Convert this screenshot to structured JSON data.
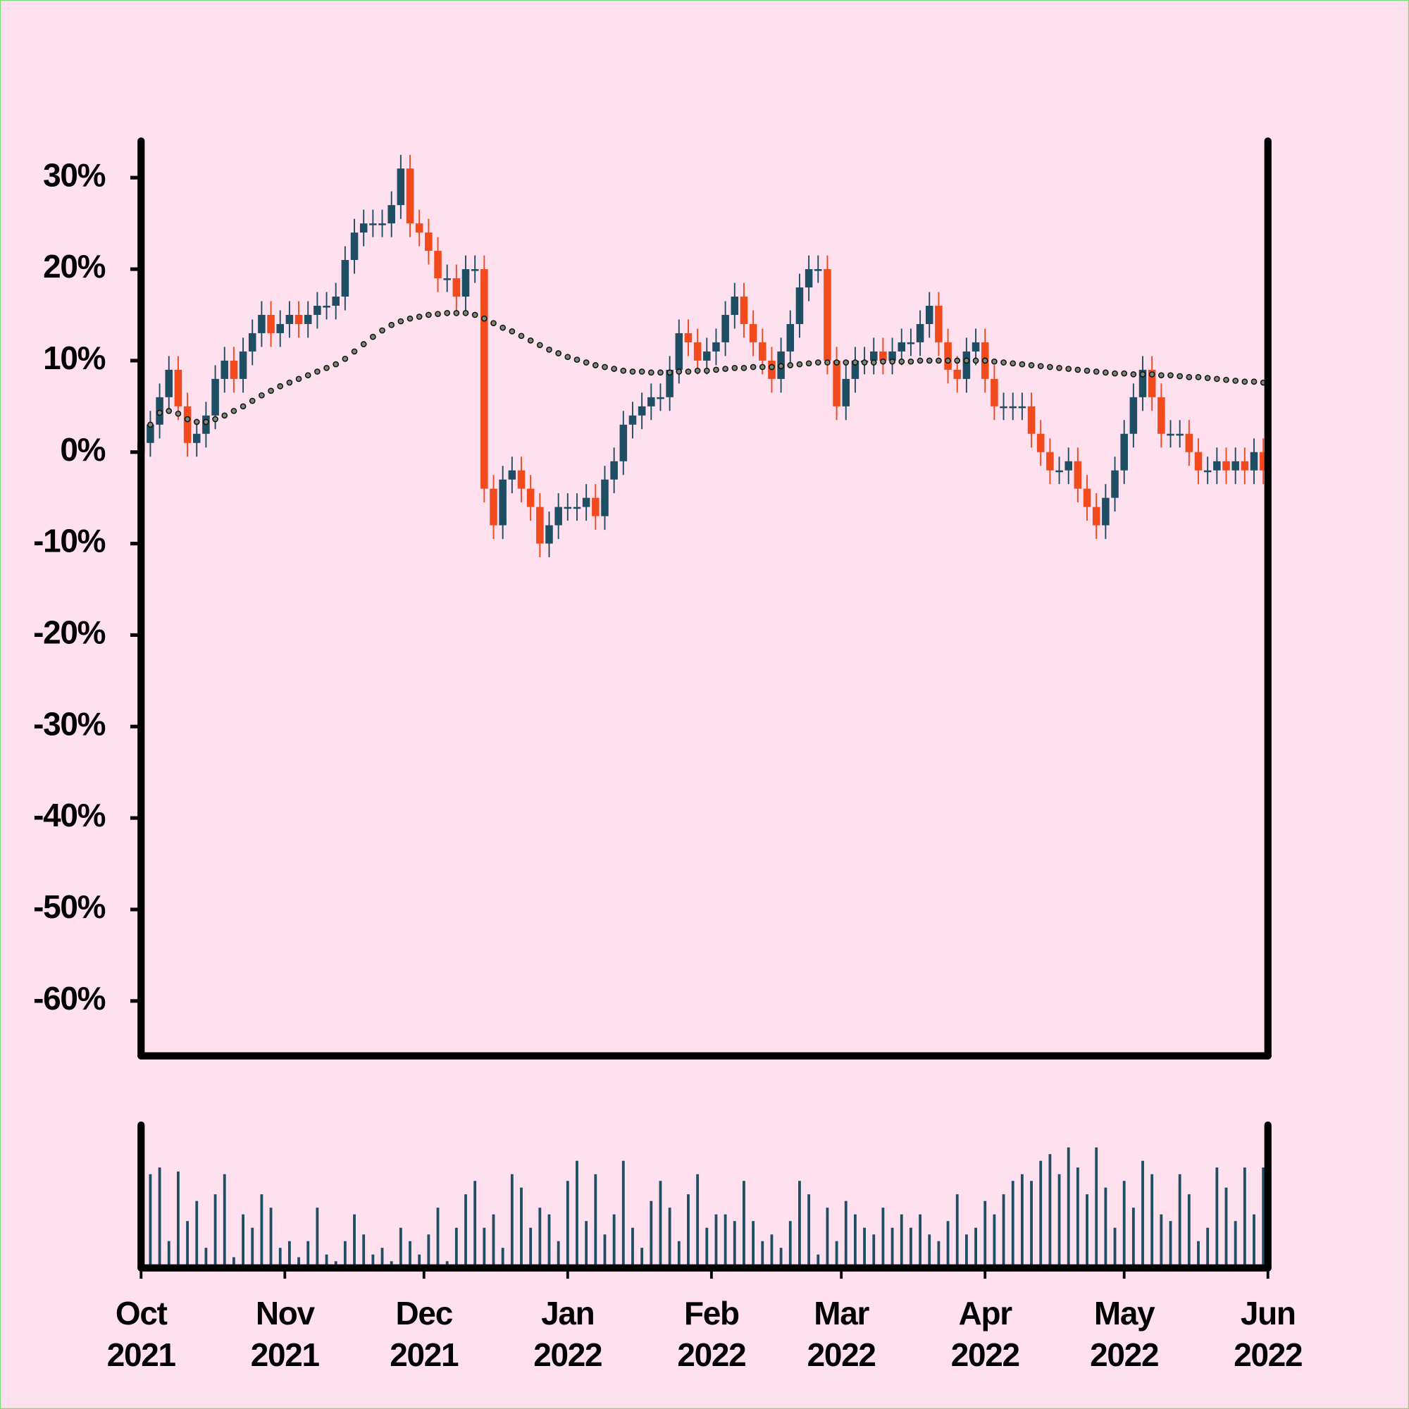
{
  "chart_data": {
    "type": "candlestick",
    "x": [
      0,
      2,
      4,
      6,
      8,
      10,
      12,
      14,
      16,
      18,
      20,
      22,
      24,
      26,
      28,
      30,
      32,
      34,
      36,
      38,
      40,
      42,
      44,
      46,
      48,
      50,
      52,
      54,
      56,
      58,
      60,
      62,
      64,
      66,
      68,
      70,
      72,
      74,
      76,
      78,
      80,
      82,
      84,
      86,
      88,
      90,
      92,
      94,
      96,
      98,
      100,
      102,
      104,
      106,
      108,
      110,
      112,
      114,
      116,
      118,
      120,
      122,
      124,
      126,
      128,
      130,
      132,
      134,
      136,
      138,
      140,
      142,
      144,
      146,
      148,
      150,
      152,
      154,
      156,
      158,
      160,
      162,
      164,
      166,
      168,
      170,
      172,
      174,
      176,
      178,
      180,
      182,
      184,
      186,
      188,
      190,
      192,
      194,
      196,
      198,
      200,
      202,
      204,
      206,
      208,
      210,
      212,
      214,
      216,
      218,
      220,
      222,
      224,
      226,
      228,
      230,
      232,
      234,
      236,
      238,
      240,
      242
    ],
    "xlim": [
      0,
      243
    ],
    "xticks": [
      {
        "value": 0,
        "label": "Oct 2021"
      },
      {
        "value": 31,
        "label": "Nov 2021"
      },
      {
        "value": 61,
        "label": "Dec 2021"
      },
      {
        "value": 92,
        "label": "Jan 2022"
      },
      {
        "value": 123,
        "label": "Feb 2022"
      },
      {
        "value": 151,
        "label": "Mar 2022"
      },
      {
        "value": 182,
        "label": "Apr 2022"
      },
      {
        "value": 212,
        "label": "May 2022"
      },
      {
        "value": 243,
        "label": "Jun 2022"
      }
    ],
    "open": [
      0,
      1,
      3,
      6,
      9,
      5,
      1,
      2,
      4,
      8,
      10,
      8,
      11,
      13,
      15,
      13,
      14,
      15,
      14,
      15,
      16,
      16,
      17,
      21,
      24,
      25,
      25,
      25,
      27,
      31,
      25,
      24,
      22,
      19,
      19,
      17,
      20,
      20,
      -4,
      -8,
      -3,
      -2,
      -4,
      -6,
      -10,
      -8,
      -6,
      -6,
      -6,
      -5,
      -7,
      -3,
      -1,
      3,
      4,
      5,
      6,
      6,
      9,
      13,
      12,
      10,
      11,
      12,
      15,
      17,
      14,
      12,
      10,
      8,
      11,
      14,
      18,
      20,
      20,
      10,
      5,
      8,
      10,
      10,
      11,
      10,
      11,
      12,
      12,
      14,
      16,
      12,
      9,
      8,
      11,
      12,
      8,
      5,
      5,
      5,
      5,
      2,
      0,
      -2,
      -2,
      -1,
      -4,
      -6,
      -8,
      -5,
      -2,
      2,
      6,
      9,
      6,
      2,
      2,
      2,
      0,
      -2,
      -2,
      -1,
      -2,
      -1,
      -2,
      0
    ],
    "high": [
      2.5,
      4.5,
      7.5,
      10.5,
      10.5,
      6.5,
      3.5,
      5.5,
      9.5,
      11.5,
      11.5,
      12.5,
      14.5,
      16.5,
      16.5,
      15.5,
      16.5,
      16.5,
      16.5,
      17.5,
      17.5,
      18.5,
      22.5,
      25.5,
      26.5,
      26.5,
      26.5,
      28.5,
      32.5,
      32.5,
      26.5,
      25.5,
      23.5,
      20.5,
      20.5,
      21.5,
      21.5,
      21.5,
      -2.5,
      -1.5,
      -0.5,
      -0.5,
      -2.5,
      -4.5,
      -6.5,
      -4.5,
      -4.5,
      -4.5,
      -3.5,
      -3.5,
      -1.5,
      0.5,
      4.5,
      5.5,
      6.5,
      7.5,
      7.5,
      10.5,
      14.5,
      14.5,
      13.5,
      12.5,
      13.5,
      16.5,
      18.5,
      18.5,
      15.5,
      13.5,
      11.5,
      12.5,
      15.5,
      19.5,
      21.5,
      21.5,
      21.5,
      11.5,
      9.5,
      11.5,
      11.5,
      12.5,
      12.5,
      12.5,
      13.5,
      13.5,
      15.5,
      17.5,
      17.5,
      13.5,
      10.5,
      12.5,
      13.5,
      13.5,
      9.5,
      6.5,
      6.5,
      6.5,
      6.5,
      3.5,
      1.5,
      -0.5,
      0.5,
      0.5,
      -2.5,
      -4.5,
      -3.5,
      -0.5,
      3.5,
      7.5,
      10.5,
      10.5,
      7.5,
      3.5,
      3.5,
      3.5,
      1.5,
      -0.5,
      0.5,
      0.5,
      0.5,
      0.5,
      1.5,
      1.5
    ],
    "low": [
      -1.5,
      -0.5,
      1.5,
      4.5,
      3.5,
      -0.5,
      -0.5,
      0.5,
      2.5,
      6.5,
      6.5,
      6.5,
      9.5,
      11.5,
      11.5,
      11.5,
      12.5,
      12.5,
      12.5,
      13.5,
      14.5,
      14.5,
      15.5,
      19.5,
      22.5,
      23.5,
      23.5,
      23.5,
      25.5,
      23.5,
      22.5,
      20.5,
      17.5,
      17.5,
      15.5,
      15.5,
      18.5,
      -5.5,
      -9.5,
      -9.5,
      -4.5,
      -5.5,
      -7.5,
      -11.5,
      -11.5,
      -9.5,
      -7.5,
      -7.5,
      -7.5,
      -8.5,
      -8.5,
      -4.5,
      -2.5,
      1.5,
      2.5,
      3.5,
      4.5,
      4.5,
      7.5,
      10.5,
      8.5,
      8.5,
      9.5,
      10.5,
      13.5,
      12.5,
      10.5,
      8.5,
      6.5,
      6.5,
      9.5,
      12.5,
      16.5,
      18.5,
      8.5,
      3.5,
      3.5,
      6.5,
      8.5,
      8.5,
      8.5,
      8.5,
      9.5,
      10.5,
      10.5,
      12.5,
      10.5,
      7.5,
      6.5,
      6.5,
      9.5,
      6.5,
      3.5,
      3.5,
      3.5,
      3.5,
      0.5,
      -1.5,
      -3.5,
      -3.5,
      -3.5,
      -5.5,
      -7.5,
      -9.5,
      -9.5,
      -6.5,
      -3.5,
      0.5,
      4.5,
      4.5,
      0.5,
      0.5,
      0.5,
      -1.5,
      -3.5,
      -3.5,
      -3.5,
      -3.5,
      -3.5,
      -3.5,
      -3.5,
      -3.5
    ],
    "close": [
      1,
      3,
      6,
      9,
      5,
      1,
      2,
      4,
      8,
      10,
      8,
      11,
      13,
      15,
      13,
      14,
      15,
      14,
      15,
      16,
      16,
      17,
      21,
      24,
      25,
      25,
      25,
      27,
      31,
      25,
      24,
      22,
      19,
      19,
      17,
      20,
      20,
      -4,
      -8,
      -3,
      -2,
      -4,
      -6,
      -10,
      -8,
      -6,
      -6,
      -6,
      -5,
      -7,
      -3,
      -1,
      3,
      4,
      5,
      6,
      6,
      9,
      13,
      12,
      10,
      11,
      12,
      15,
      17,
      14,
      12,
      10,
      8,
      11,
      14,
      18,
      20,
      20,
      10,
      5,
      8,
      10,
      10,
      11,
      10,
      11,
      12,
      12,
      14,
      16,
      12,
      9,
      8,
      11,
      12,
      8,
      5,
      5,
      5,
      5,
      2,
      0,
      -2,
      -2,
      -1,
      -4,
      -6,
      -8,
      -5,
      -2,
      2,
      6,
      9,
      6,
      2,
      2,
      2,
      0,
      -2,
      -2,
      -1,
      -2,
      -1,
      -2,
      0,
      -2
    ],
    "up_color": "#1d4e63",
    "down_color": "#f34a1d",
    "ylim": [
      -66,
      34
    ],
    "yticks": [
      {
        "value": -60,
        "label": "-60%"
      },
      {
        "value": -50,
        "label": "-50%"
      },
      {
        "value": -40,
        "label": "-40%"
      },
      {
        "value": -30,
        "label": "-30%"
      },
      {
        "value": -20,
        "label": "-20%"
      },
      {
        "value": -10,
        "label": "-10%"
      },
      {
        "value": 0,
        "label": "0%"
      },
      {
        "value": 10,
        "label": "10%"
      },
      {
        "value": 20,
        "label": "20%"
      },
      {
        "value": 30,
        "label": "30%"
      }
    ],
    "moving_average": {
      "color": "#7b8a78",
      "values": [
        2,
        3,
        4.3,
        4.5,
        4.2,
        3.6,
        3.3,
        3.3,
        3.6,
        4.0,
        4.5,
        5.0,
        5.6,
        6.2,
        6.7,
        7.2,
        7.6,
        8.0,
        8.4,
        8.8,
        9.2,
        9.6,
        10.2,
        11.0,
        11.8,
        12.6,
        13.3,
        13.9,
        14.3,
        14.6,
        14.8,
        15.0,
        15.1,
        15.2,
        15.2,
        15.2,
        15.0,
        14.6,
        14.1,
        13.6,
        13.2,
        12.7,
        12.2,
        11.7,
        11.2,
        10.8,
        10.4,
        10.1,
        9.8,
        9.5,
        9.3,
        9.1,
        8.9,
        8.8,
        8.8,
        8.7,
        8.7,
        8.7,
        8.8,
        8.8,
        8.9,
        8.9,
        9.0,
        9.1,
        9.2,
        9.2,
        9.3,
        9.3,
        9.3,
        9.4,
        9.5,
        9.6,
        9.7,
        9.8,
        9.8,
        9.8,
        9.8,
        9.8,
        9.8,
        9.8,
        9.9,
        9.9,
        9.9,
        9.9,
        10.0,
        10.0,
        10.0,
        10.0,
        10.0,
        10.0,
        10.0,
        10.0,
        9.9,
        9.8,
        9.7,
        9.6,
        9.5,
        9.4,
        9.3,
        9.2,
        9.1,
        9.0,
        8.9,
        8.8,
        8.7,
        8.6,
        8.6,
        8.5,
        8.5,
        8.5,
        8.4,
        8.4,
        8.3,
        8.2,
        8.2,
        8.1,
        8.0,
        7.9,
        7.8,
        7.7,
        7.7,
        7.6
      ]
    },
    "volume": {
      "color": "#1d4e63",
      "ylim": [
        0,
        100
      ],
      "values": [
        45,
        70,
        75,
        20,
        72,
        35,
        50,
        15,
        55,
        70,
        8,
        40,
        30,
        55,
        45,
        15,
        20,
        8,
        20,
        45,
        10,
        5,
        20,
        40,
        25,
        10,
        15,
        5,
        30,
        20,
        10,
        25,
        45,
        5,
        30,
        55,
        65,
        30,
        40,
        15,
        70,
        60,
        30,
        45,
        40,
        20,
        65,
        80,
        35,
        70,
        25,
        40,
        80,
        30,
        15,
        50,
        65,
        45,
        20,
        55,
        70,
        30,
        40,
        40,
        35,
        65,
        35,
        20,
        25,
        15,
        35,
        65,
        55,
        10,
        45,
        20,
        50,
        40,
        30,
        25,
        45,
        30,
        40,
        30,
        40,
        25,
        20,
        35,
        55,
        25,
        30,
        50,
        40,
        55,
        65,
        70,
        65,
        80,
        85,
        70,
        90,
        75,
        55,
        90,
        60,
        30,
        65,
        45,
        80,
        70,
        40,
        35,
        70,
        55,
        20,
        30,
        75,
        60,
        35,
        75,
        40,
        75
      ]
    }
  }
}
